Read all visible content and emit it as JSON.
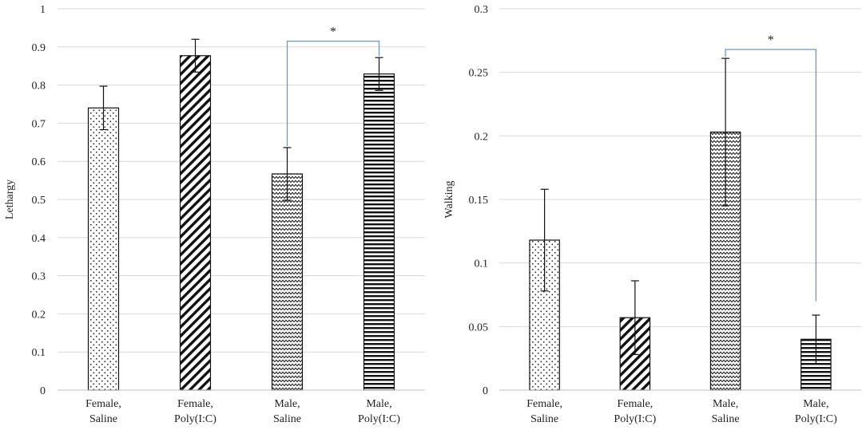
{
  "chart_data": [
    {
      "type": "bar",
      "title": "",
      "xlabel": "",
      "ylabel": "Lethargy",
      "ylim": [
        0,
        1
      ],
      "yticks": [
        0,
        0.1,
        0.2,
        0.3,
        0.4,
        0.5,
        0.6,
        0.7,
        0.8,
        0.9,
        1
      ],
      "ytick_labels": [
        "0",
        "0.1",
        "0.2",
        "0.3",
        "0.4",
        "0.5",
        "0.6",
        "0.7",
        "0.8",
        "0.9",
        "1"
      ],
      "grid": true,
      "categories": [
        [
          "Female,",
          "Saline"
        ],
        [
          "Female,",
          "Poly(I:C)"
        ],
        [
          "Male,",
          "Saline"
        ],
        [
          "Male,",
          "Poly(I:C)"
        ]
      ],
      "patterns": [
        "dots",
        "diagonal",
        "zigzag",
        "horizontal"
      ],
      "values": [
        0.74,
        0.877,
        0.567,
        0.829
      ],
      "errors": [
        0.057,
        0.043,
        0.069,
        0.043
      ],
      "significance": [
        {
          "from": 2,
          "to": 3,
          "label": "*",
          "level": 0.915
        }
      ]
    },
    {
      "type": "bar",
      "title": "",
      "xlabel": "",
      "ylabel": "Walking",
      "ylim": [
        0,
        0.3
      ],
      "yticks": [
        0,
        0.05,
        0.1,
        0.15,
        0.2,
        0.25,
        0.3
      ],
      "ytick_labels": [
        "0",
        "0.05",
        "0.1",
        "0.15",
        "0.2",
        "0.25",
        "0.3"
      ],
      "grid": true,
      "categories": [
        [
          "Female,",
          "Saline"
        ],
        [
          "Female,",
          "Poly(I:C)"
        ],
        [
          "Male,",
          "Saline"
        ],
        [
          "Male,",
          "Poly(I:C)"
        ]
      ],
      "patterns": [
        "dots",
        "diagonal",
        "zigzag",
        "horizontal"
      ],
      "values": [
        0.118,
        0.057,
        0.203,
        0.04
      ],
      "errors": [
        0.04,
        0.029,
        0.058,
        0.019
      ],
      "significance": [
        {
          "from": 2,
          "to": 3,
          "label": "*",
          "level": 0.268,
          "to_level": 0.07
        }
      ]
    }
  ]
}
